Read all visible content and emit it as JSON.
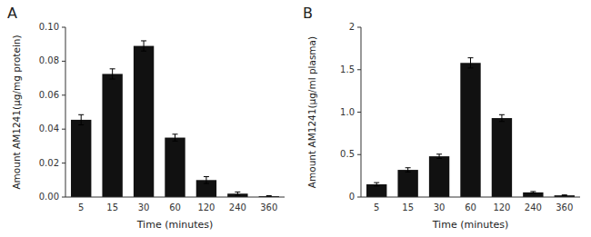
{
  "chart_data": [
    {
      "type": "bar",
      "title": "A",
      "categories": [
        "5",
        "15",
        "30",
        "60",
        "120",
        "240",
        "360"
      ],
      "values": [
        0.0455,
        0.0725,
        0.089,
        0.035,
        0.01,
        0.002,
        0.0005
      ],
      "errors": [
        0.003,
        0.003,
        0.003,
        0.002,
        0.002,
        0.001,
        0.0003
      ],
      "xlabel": "Time (minutes)",
      "ylabel": "Amount AM1241(μg/mg protein)",
      "color": "#111111",
      "ylim": [
        0,
        0.1
      ],
      "yticks": [
        {
          "value": 0,
          "label": "0.00"
        },
        0.02,
        0.04,
        0.06,
        0.08,
        {
          "value": 0.1,
          "label": "0.10"
        }
      ]
    },
    {
      "type": "bar",
      "title": "B",
      "categories": [
        "5",
        "15",
        "30",
        "60",
        "120",
        "240",
        "360"
      ],
      "values": [
        0.15,
        0.32,
        0.48,
        1.58,
        0.93,
        0.055,
        0.02
      ],
      "errors": [
        0.02,
        0.025,
        0.025,
        0.06,
        0.04,
        0.01,
        0.005
      ],
      "xlabel": "Time (minutes)",
      "ylabel": "Amount AM1241(μg/ml plasma)",
      "color": "#111111",
      "ylim": [
        0,
        2.0
      ],
      "yticks": [
        0,
        0.5,
        {
          "value": 1,
          "label": "1.0"
        },
        1.5,
        2
      ]
    }
  ]
}
